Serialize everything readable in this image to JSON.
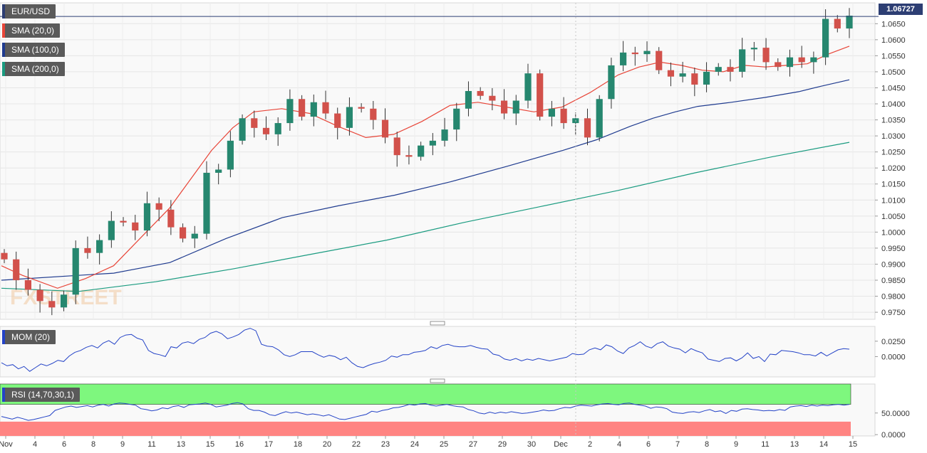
{
  "colors": {
    "background": "#ffffff",
    "plot_background": "#f9f9f9",
    "bull": "#26876f",
    "bear": "#d2514b",
    "sma20": "#e84538",
    "sma100": "#1f3b8f",
    "sma200": "#1a9b80",
    "mom": "#2443c7",
    "rsi": "#2443c7",
    "rsi_over": "#7ef77e",
    "rsi_under": "#ff8482",
    "grid": "#e6e6e6",
    "price_line": "#2d3e73"
  },
  "legend": {
    "symbol": "EUR/USD",
    "sma20": "SMA (20,0)",
    "sma100": "SMA (100,0)",
    "sma200": "SMA (200,0)"
  },
  "last_price": "1.06727",
  "watermark": "FXSTREET",
  "chart_data": [
    {
      "type": "candlestick",
      "title": "EUR/USD",
      "x": [
        "Nov",
        "4",
        "6",
        "8",
        "9",
        "11",
        "13",
        "15",
        "16",
        "17",
        "18",
        "20",
        "22",
        "23",
        "24",
        "25",
        "27",
        "29",
        "30",
        "Dec",
        "2",
        "4",
        "6",
        "7",
        "8",
        "9",
        "11",
        "13",
        "14",
        "15"
      ],
      "ylim": [
        0.9728,
        1.0715
      ],
      "yticks": [
        "0.9750",
        "0.9800",
        "0.9850",
        "0.9900",
        "0.9950",
        "1.0000",
        "1.0050",
        "1.0100",
        "1.0150",
        "1.0200",
        "1.0250",
        "1.0300",
        "1.0350",
        "1.0400",
        "1.0450",
        "1.0500",
        "1.0550",
        "1.0600",
        "1.0650"
      ],
      "close_path": [
        0.9915,
        0.985,
        0.982,
        0.9785,
        0.9765,
        0.9805,
        0.995,
        0.9935,
        0.9975,
        1.0035,
        1.003,
        1.0005,
        1.009,
        1.007,
        1.0015,
        0.998,
        0.9995,
        1.0185,
        1.0195,
        1.0285,
        1.0355,
        1.0325,
        1.0305,
        1.034,
        1.0415,
        1.036,
        1.0405,
        1.037,
        1.0325,
        1.039,
        1.0385,
        1.035,
        1.0295,
        1.024,
        1.0235,
        1.027,
        1.0285,
        1.032,
        1.0385,
        1.044,
        1.0425,
        1.041,
        1.037,
        1.041,
        1.0495,
        1.036,
        1.0385,
        1.034,
        1.0355,
        1.0295,
        1.0415,
        1.052,
        1.056,
        1.0555,
        1.0565,
        1.0505,
        1.0485,
        1.0495,
        1.046,
        1.05,
        1.0515,
        1.05,
        1.057,
        1.0575,
        1.053,
        1.0515,
        1.0545,
        1.053,
        1.0545,
        1.0665,
        1.0635,
        1.0675
      ],
      "sma20": [
        [
          0,
          0.9895
        ],
        [
          3,
          0.9865
        ],
        [
          8,
          0.9825
        ],
        [
          12,
          0.9855
        ],
        [
          16,
          0.9895
        ],
        [
          20,
          0.9985
        ],
        [
          24,
          1.0075
        ],
        [
          27,
          1.0165
        ],
        [
          30,
          1.0255
        ],
        [
          33,
          1.0325
        ],
        [
          36,
          1.0375
        ],
        [
          40,
          1.0385
        ],
        [
          44,
          1.037
        ],
        [
          48,
          1.033
        ],
        [
          52,
          1.0295
        ],
        [
          56,
          1.0305
        ],
        [
          60,
          1.0345
        ],
        [
          64,
          1.0395
        ],
        [
          68,
          1.0405
        ],
        [
          72,
          1.039
        ],
        [
          76,
          1.0375
        ],
        [
          80,
          1.039
        ],
        [
          84,
          1.0435
        ],
        [
          88,
          1.049
        ],
        [
          91,
          1.0515
        ],
        [
          94,
          1.053
        ],
        [
          97,
          1.052
        ],
        [
          100,
          1.0505
        ],
        [
          103,
          1.05
        ],
        [
          106,
          1.052
        ],
        [
          109,
          1.0515
        ],
        [
          112,
          1.052
        ],
        [
          115,
          1.0525
        ],
        [
          118,
          1.0555
        ],
        [
          121,
          1.058
        ]
      ],
      "sma100": [
        [
          0,
          0.985
        ],
        [
          20,
          0.9872
        ],
        [
          30,
          0.9905
        ],
        [
          40,
          0.998
        ],
        [
          50,
          1.0045
        ],
        [
          60,
          1.0082
        ],
        [
          70,
          1.0115
        ],
        [
          80,
          1.0157
        ],
        [
          90,
          1.0205
        ],
        [
          100,
          1.0255
        ],
        [
          106,
          1.0288
        ],
        [
          112,
          1.033
        ],
        [
          116,
          1.0355
        ],
        [
          120,
          1.0375
        ],
        [
          124,
          1.0392
        ],
        [
          130,
          1.0405
        ],
        [
          136,
          1.042
        ],
        [
          142,
          1.0438
        ],
        [
          146,
          1.0455
        ],
        [
          151,
          1.0475
        ]
      ],
      "sma200": [
        [
          0,
          0.9825
        ],
        [
          20,
          0.9815
        ],
        [
          40,
          0.9845
        ],
        [
          60,
          0.9885
        ],
        [
          80,
          0.993
        ],
        [
          100,
          0.9975
        ],
        [
          120,
          1.003
        ],
        [
          140,
          1.008
        ],
        [
          160,
          1.013
        ],
        [
          180,
          1.0185
        ],
        [
          200,
          1.0235
        ],
        [
          220,
          1.028
        ]
      ]
    },
    {
      "type": "line",
      "title": "MOM (20)",
      "yticks": [
        "0.0250",
        "0.0000"
      ],
      "ylim": [
        -0.033,
        0.049
      ],
      "values": [
        -0.01,
        -0.015,
        -0.013,
        -0.02,
        -0.016,
        -0.024,
        -0.018,
        -0.012,
        -0.015,
        -0.011,
        -0.006,
        -0.008,
        0.001,
        0.007,
        0.01,
        0.015,
        0.018,
        0.014,
        0.022,
        0.026,
        0.02,
        0.031,
        0.035,
        0.036,
        0.03,
        0.027,
        0.01,
        0.005,
        0.003,
        0.0,
        0.016,
        0.014,
        0.022,
        0.024,
        0.021,
        0.028,
        0.031,
        0.038,
        0.041,
        0.037,
        0.029,
        0.032,
        0.036,
        0.043,
        0.046,
        0.042,
        0.02,
        0.017,
        0.016,
        0.011,
        0.003,
        0.0,
        0.003,
        0.008,
        0.008,
        0.008,
        0.003,
        -0.001,
        0.002,
        0.0,
        -0.005,
        -0.001,
        -0.01,
        -0.016,
        -0.018,
        -0.014,
        -0.011,
        -0.009,
        -0.006,
        0.001,
        -0.001,
        0.003,
        0.003,
        0.007,
        0.008,
        0.01,
        0.016,
        0.013,
        0.018,
        0.02,
        0.017,
        0.016,
        0.016,
        0.018,
        0.015,
        0.013,
        0.012,
        0.004,
        0.002,
        -0.004,
        -0.006,
        -0.003,
        -0.007,
        -0.004,
        -0.006,
        -0.003,
        -0.005,
        -0.007,
        -0.005,
        -0.003,
        -0.001,
        0.005,
        0.003,
        0.004,
        0.011,
        0.014,
        0.011,
        0.019,
        0.016,
        0.009,
        0.005,
        0.014,
        0.018,
        0.024,
        0.017,
        0.014,
        0.021,
        0.024,
        0.017,
        0.014,
        0.012,
        0.006,
        0.013,
        0.009,
        0.006,
        -0.004,
        -0.006,
        -0.008,
        -0.003,
        -0.002,
        -0.007,
        -0.002,
        0.006,
        -0.003,
        0.0,
        -0.008,
        0.004,
        0.003,
        0.01,
        0.009,
        0.008,
        0.006,
        0.003,
        0.003,
        0.001,
        0.007,
        0.001,
        0.006,
        0.011,
        0.013,
        0.012
      ]
    },
    {
      "type": "line",
      "title": "RSI (14,70,30,1)",
      "yticks": [
        "50.0000",
        "0.0000"
      ],
      "ylim": [
        -3,
        117
      ],
      "overbought": 70,
      "oversold": 30,
      "values": [
        42,
        39,
        36,
        40,
        37,
        33,
        35,
        38,
        41,
        44,
        56,
        60,
        64,
        66,
        63,
        65,
        67,
        64,
        68,
        70,
        66,
        71,
        73,
        72,
        70,
        68,
        60,
        58,
        55,
        57,
        62,
        60,
        65,
        67,
        63,
        69,
        70,
        71,
        73,
        70,
        64,
        66,
        68,
        72,
        74,
        71,
        60,
        56,
        56,
        52,
        46,
        44,
        49,
        53,
        50,
        52,
        49,
        46,
        48,
        46,
        43,
        46,
        41,
        36,
        35,
        38,
        41,
        44,
        47,
        54,
        52,
        56,
        58,
        62,
        63,
        66,
        70,
        68,
        71,
        72,
        68,
        66,
        68,
        70,
        67,
        65,
        64,
        58,
        55,
        50,
        48,
        52,
        49,
        52,
        50,
        53,
        51,
        49,
        50,
        52,
        54,
        57,
        55,
        56,
        60,
        63,
        62,
        66,
        68,
        67,
        66,
        69,
        71,
        72,
        70,
        69,
        72,
        73,
        70,
        68,
        66,
        61,
        64,
        63,
        60,
        52,
        50,
        49,
        52,
        53,
        51,
        55,
        58,
        53,
        55,
        49,
        56,
        54,
        59,
        60,
        58,
        57,
        55,
        56,
        55,
        58,
        56,
        64,
        66,
        67,
        65,
        68,
        66,
        68,
        67,
        69,
        70,
        68,
        70
      ]
    }
  ]
}
